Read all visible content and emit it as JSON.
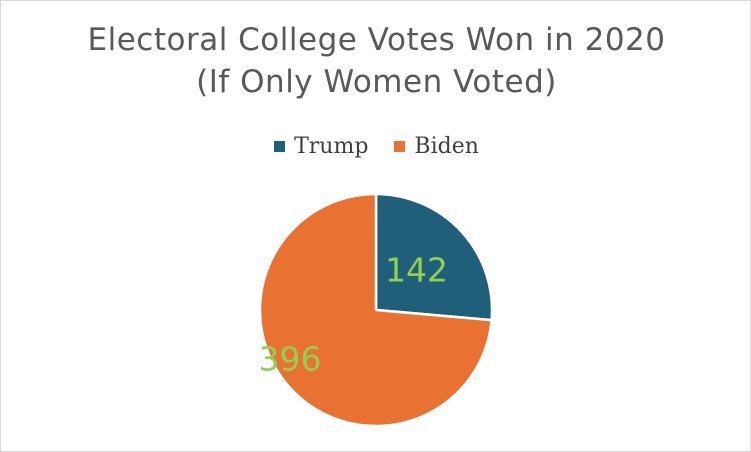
{
  "chart_data": {
    "type": "pie",
    "title": "Electoral College Votes Won in 2020",
    "subtitle": "(If Only Women Voted)",
    "legend_position": "top",
    "series": [
      {
        "name": "Trump",
        "value": 142,
        "color": "#1f5f7a"
      },
      {
        "name": "Biden",
        "value": 396,
        "color": "#e97132"
      }
    ],
    "data_label_color": "#92d050",
    "start_angle_deg": 0,
    "direction": "clockwise"
  }
}
